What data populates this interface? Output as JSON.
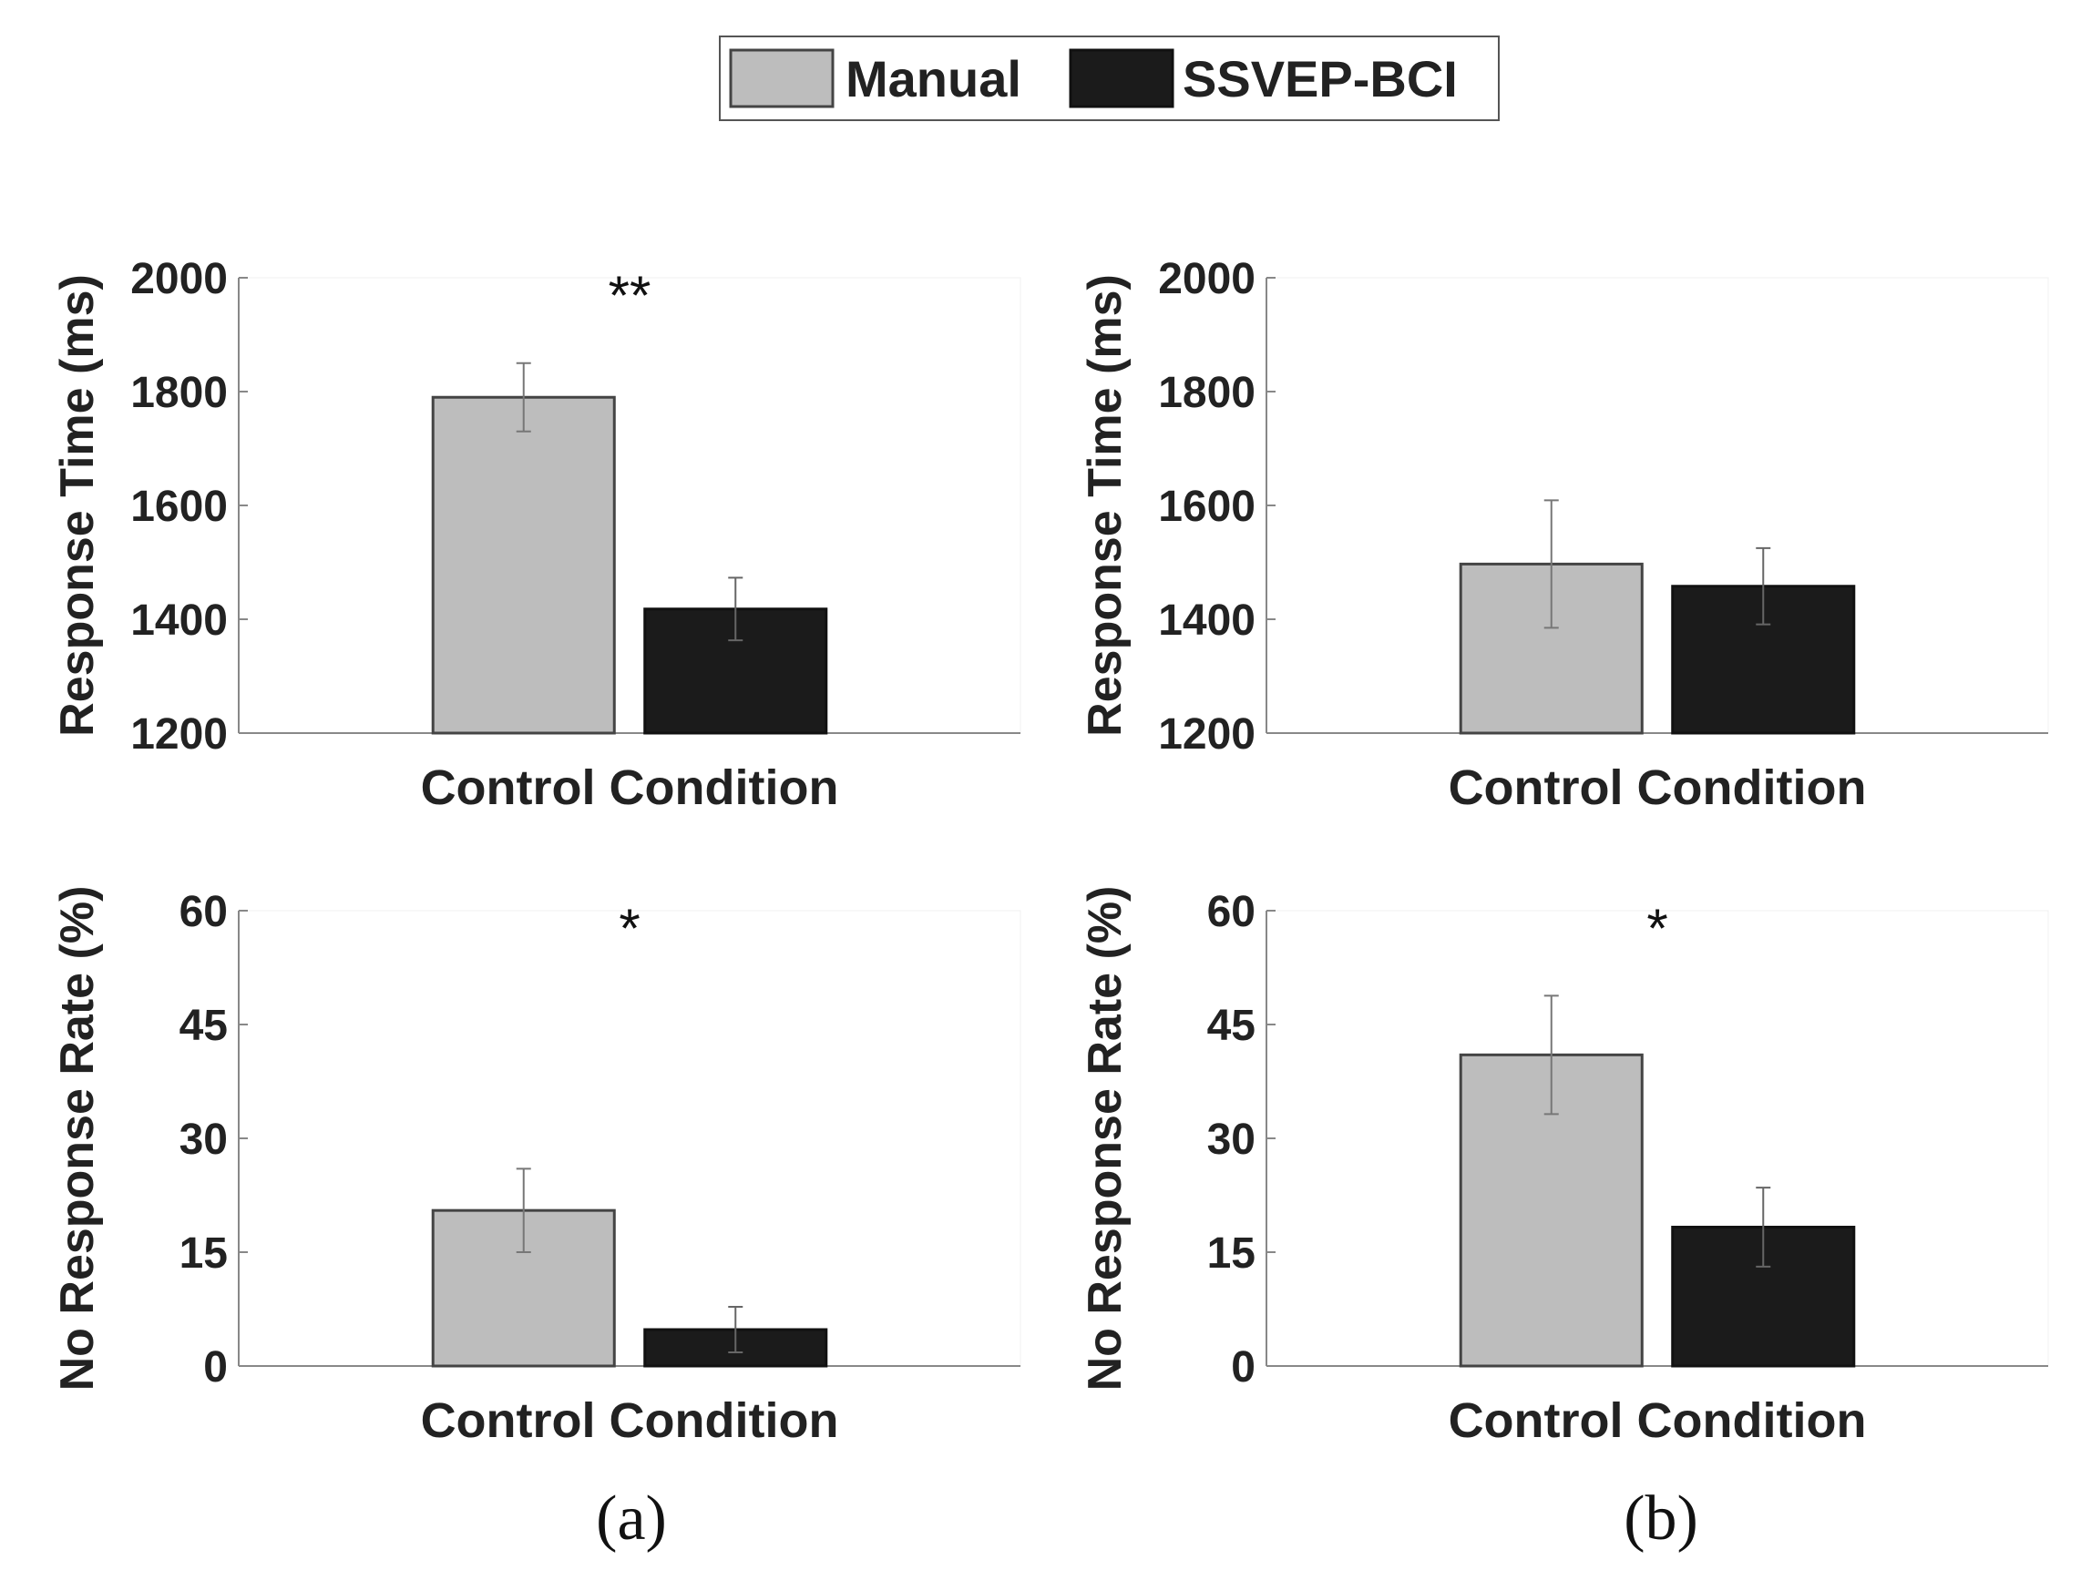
{
  "legend": {
    "items": [
      {
        "label": "Manual",
        "color": "#bdbdbd"
      },
      {
        "label": "SSVEP-BCI",
        "color": "#1b1b1b"
      }
    ]
  },
  "panel_labels": [
    "(a)",
    "(b)"
  ],
  "chart_data": [
    {
      "type": "bar",
      "panel": "(a)",
      "categories": [
        "Control Condition"
      ],
      "xlabel": "Control Condition",
      "ylabel": "Response Time (ms)",
      "ylim": [
        1200,
        2000
      ],
      "yticks": [
        1200,
        1400,
        1600,
        1800,
        2000
      ],
      "series": [
        {
          "name": "Manual",
          "values": [
            1790
          ],
          "error": [
            60
          ]
        },
        {
          "name": "SSVEP-BCI",
          "values": [
            1418
          ],
          "error": [
            55
          ]
        }
      ],
      "annotation": "**"
    },
    {
      "type": "bar",
      "panel": "(b)",
      "categories": [
        "Control Condition"
      ],
      "xlabel": "Control Condition",
      "ylabel": "Response Time (ms)",
      "ylim": [
        1200,
        2000
      ],
      "yticks": [
        1200,
        1400,
        1600,
        1800,
        2000
      ],
      "series": [
        {
          "name": "Manual",
          "values": [
            1497
          ],
          "error": [
            112
          ]
        },
        {
          "name": "SSVEP-BCI",
          "values": [
            1458
          ],
          "error": [
            67
          ]
        }
      ],
      "annotation": ""
    },
    {
      "type": "bar",
      "panel": "(a)",
      "categories": [
        "Control Condition"
      ],
      "xlabel": "Control Condition",
      "ylabel": "No Response Rate (%)",
      "ylim": [
        0,
        60
      ],
      "yticks": [
        0,
        15,
        30,
        45,
        60
      ],
      "series": [
        {
          "name": "Manual",
          "values": [
            20.5
          ],
          "error": [
            5.5
          ]
        },
        {
          "name": "SSVEP-BCI",
          "values": [
            4.8
          ],
          "error": [
            3.0
          ]
        }
      ],
      "annotation": "*"
    },
    {
      "type": "bar",
      "panel": "(b)",
      "categories": [
        "Control Condition"
      ],
      "xlabel": "Control Condition",
      "ylabel": "No Response Rate (%)",
      "ylim": [
        0,
        60
      ],
      "yticks": [
        0,
        15,
        30,
        45,
        60
      ],
      "series": [
        {
          "name": "Manual",
          "values": [
            41
          ],
          "error": [
            7.8
          ]
        },
        {
          "name": "SSVEP-BCI",
          "values": [
            18.3
          ],
          "error": [
            5.2
          ]
        }
      ],
      "annotation": "*"
    }
  ]
}
